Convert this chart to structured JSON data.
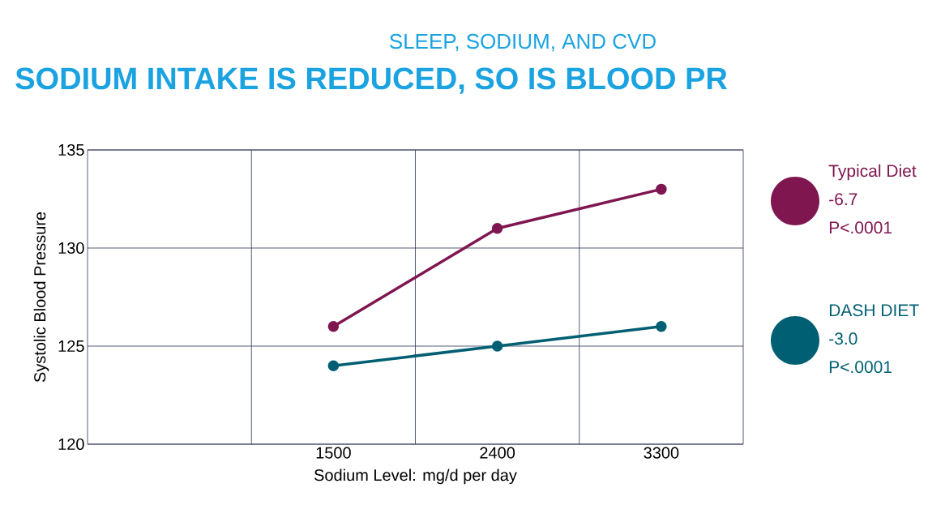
{
  "chart_data": {
    "type": "line",
    "subtitle": "SLEEP, SODIUM, AND CVD",
    "title": "SODIUM INTAKE IS REDUCED, SO IS BLOOD PR",
    "xlabel": "Sodium Level: mg/d per day",
    "ylabel": "Systolic Blood Pressure",
    "categories": [
      null,
      "1500",
      "2400",
      "3300"
    ],
    "series": [
      {
        "name": "Typical Diet",
        "color": "#7f1650",
        "values": [
          null,
          126,
          131,
          133
        ]
      },
      {
        "name": "DASH DIET",
        "color": "#005f73",
        "values": [
          null,
          124,
          125,
          126
        ]
      }
    ],
    "annotations": [
      "-6.7",
      "P<.0001",
      "-3.0",
      "P<.0001"
    ],
    "ylim": [
      120,
      135
    ],
    "yticks": [
      120,
      125,
      130,
      135
    ],
    "grid": true,
    "legend": "right",
    "marker": "circle",
    "line_style": "solid"
  }
}
